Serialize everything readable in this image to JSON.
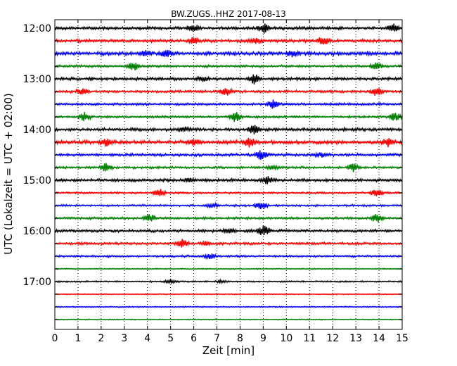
{
  "chart_data": {
    "type": "line",
    "title": "BW.ZUGS..HHZ 2017-08-13",
    "xlabel": "Zeit  [min]",
    "ylabel": "UTC (Lokalzeit = UTC + 02:00)",
    "xlim": [
      0,
      15
    ],
    "x_ticks": [
      "0",
      "1",
      "2",
      "3",
      "4",
      "5",
      "6",
      "7",
      "8",
      "9",
      "10",
      "11",
      "12",
      "13",
      "14",
      "15"
    ],
    "y_ticks": [
      "12:00",
      "13:00",
      "14:00",
      "15:00",
      "16:00",
      "17:00"
    ],
    "grid": "vertical dotted lines at each minute",
    "color_cycle": [
      "#000000",
      "#ff0000",
      "#0000ff",
      "#008000"
    ],
    "traces": [
      {
        "start": "12:00",
        "noise": 1.5,
        "events": [
          [
            6.0,
            5
          ],
          [
            9.0,
            7
          ],
          [
            14.6,
            6
          ]
        ]
      },
      {
        "start": "12:15",
        "noise": 1.5,
        "events": [
          [
            6.0,
            5
          ],
          [
            8.7,
            4
          ],
          [
            11.6,
            7
          ]
        ]
      },
      {
        "start": "12:30",
        "noise": 1.8,
        "events": [
          [
            3.9,
            4
          ],
          [
            4.8,
            5
          ],
          [
            10.3,
            5
          ]
        ]
      },
      {
        "start": "12:45",
        "noise": 1.2,
        "events": [
          [
            3.4,
            6
          ],
          [
            13.9,
            5
          ]
        ]
      },
      {
        "start": "13:00",
        "noise": 1.5,
        "events": [
          [
            8.6,
            7
          ],
          [
            6.4,
            3
          ]
        ]
      },
      {
        "start": "13:15",
        "noise": 1.3,
        "events": [
          [
            1.2,
            5
          ],
          [
            7.4,
            6
          ],
          [
            13.9,
            6
          ]
        ]
      },
      {
        "start": "13:30",
        "noise": 1.2,
        "events": [
          [
            9.4,
            6
          ]
        ]
      },
      {
        "start": "13:45",
        "noise": 1.2,
        "events": [
          [
            1.3,
            6
          ],
          [
            7.8,
            7
          ],
          [
            14.7,
            6
          ]
        ]
      },
      {
        "start": "14:00",
        "noise": 1.6,
        "events": [
          [
            8.6,
            6
          ],
          [
            5.6,
            3
          ]
        ]
      },
      {
        "start": "14:15",
        "noise": 1.8,
        "events": [
          [
            2.2,
            5
          ],
          [
            6.0,
            4
          ],
          [
            8.4,
            6
          ],
          [
            14.4,
            6
          ]
        ]
      },
      {
        "start": "14:30",
        "noise": 1.4,
        "events": [
          [
            8.9,
            7
          ],
          [
            11.5,
            3
          ]
        ]
      },
      {
        "start": "14:45",
        "noise": 1.2,
        "events": [
          [
            2.2,
            6
          ],
          [
            9.4,
            3
          ],
          [
            12.9,
            6
          ]
        ]
      },
      {
        "start": "15:00",
        "noise": 1.5,
        "events": [
          [
            9.2,
            6
          ],
          [
            5.8,
            3
          ]
        ]
      },
      {
        "start": "15:15",
        "noise": 1.0,
        "events": [
          [
            4.5,
            6
          ],
          [
            13.9,
            6
          ]
        ]
      },
      {
        "start": "15:30",
        "noise": 1.0,
        "events": [
          [
            6.8,
            3
          ],
          [
            8.9,
            6
          ]
        ]
      },
      {
        "start": "15:45",
        "noise": 1.2,
        "events": [
          [
            4.1,
            6
          ],
          [
            13.9,
            6
          ]
        ]
      },
      {
        "start": "16:00",
        "noise": 1.4,
        "events": [
          [
            9.0,
            7
          ],
          [
            7.5,
            3
          ]
        ]
      },
      {
        "start": "16:15",
        "noise": 1.3,
        "events": [
          [
            5.5,
            6
          ],
          [
            6.5,
            3
          ]
        ]
      },
      {
        "start": "16:30",
        "noise": 1.0,
        "events": [
          [
            6.7,
            4
          ]
        ]
      },
      {
        "start": "16:45",
        "noise": 0.6,
        "events": []
      },
      {
        "start": "17:00",
        "noise": 0.8,
        "events": [
          [
            5.0,
            3
          ],
          [
            7.2,
            2
          ]
        ]
      },
      {
        "start": "17:15",
        "noise": 0.5,
        "events": []
      },
      {
        "start": "17:30",
        "noise": 0.6,
        "events": []
      },
      {
        "start": "17:45",
        "noise": 0.5,
        "events": []
      }
    ]
  }
}
